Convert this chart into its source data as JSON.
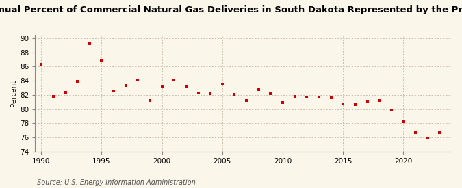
{
  "title": "Annual Percent of Commercial Natural Gas Deliveries in South Dakota Represented by the Price",
  "ylabel": "Percent",
  "source": "Source: U.S. Energy Information Administration",
  "xlim": [
    1989.5,
    2024
  ],
  "ylim": [
    74,
    90.5
  ],
  "yticks": [
    74,
    76,
    78,
    80,
    82,
    84,
    86,
    88,
    90
  ],
  "xticks": [
    1990,
    1995,
    2000,
    2005,
    2010,
    2015,
    2020
  ],
  "years": [
    1990,
    1991,
    1992,
    1993,
    1994,
    1995,
    1996,
    1997,
    1998,
    1999,
    2000,
    2001,
    2002,
    2003,
    2004,
    2005,
    2006,
    2007,
    2008,
    2009,
    2010,
    2011,
    2012,
    2013,
    2014,
    2015,
    2016,
    2017,
    2018,
    2019,
    2020,
    2021,
    2022,
    2023
  ],
  "values": [
    86.3,
    81.8,
    82.4,
    83.9,
    89.2,
    86.8,
    82.6,
    83.3,
    84.1,
    81.2,
    83.1,
    84.1,
    83.1,
    82.3,
    82.2,
    83.5,
    82.1,
    81.2,
    82.8,
    82.2,
    80.9,
    81.8,
    81.7,
    81.7,
    81.6,
    80.7,
    80.6,
    81.1,
    81.2,
    79.9,
    78.2,
    76.7,
    75.9,
    76.7
  ],
  "marker_color": "#cc0000",
  "marker": "s",
  "marker_size": 3.5,
  "bg_color": "#faf6ea",
  "grid_color": "#b8a898",
  "title_fontsize": 9.5,
  "label_fontsize": 7.5,
  "tick_fontsize": 7.5,
  "source_fontsize": 7.0
}
